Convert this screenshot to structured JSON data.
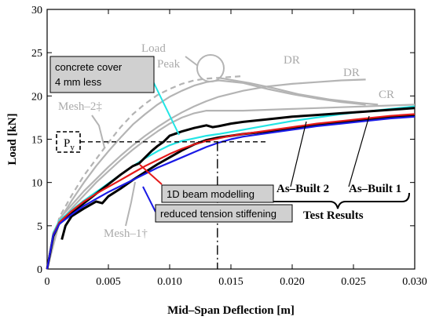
{
  "chart_data": {
    "type": "line",
    "xlabel": "Mid–Span Deflection [m]",
    "ylabel": "Load [kN]",
    "xlim": [
      0,
      0.03
    ],
    "ylim": [
      0,
      30
    ],
    "x_ticks": [
      0,
      0.005,
      0.01,
      0.015,
      0.02,
      0.025,
      0.03
    ],
    "x_tick_labels": [
      "0",
      "0.005",
      "0.010",
      "0.015",
      "0.020",
      "0.025",
      "0.030"
    ],
    "y_ticks": [
      0,
      5,
      10,
      15,
      20,
      25,
      30
    ],
    "y_tick_labels": [
      "0",
      "5",
      "10",
      "15",
      "20",
      "25",
      "30"
    ],
    "grid": false,
    "py_load": 14.7,
    "py_deflection": 0.0139,
    "series": [
      {
        "name": "Mesh–2‡ DR",
        "color": "#b4b4b4",
        "dashed": true,
        "x": [
          0,
          0.001,
          0.002,
          0.003,
          0.004,
          0.005,
          0.006,
          0.007,
          0.008,
          0.009,
          0.01,
          0.011,
          0.012,
          0.013,
          0.014,
          0.015,
          0.016
        ],
        "y": [
          0,
          6.0,
          8.5,
          10.8,
          12.7,
          14.6,
          16.4,
          17.9,
          19.1,
          20.1,
          20.8,
          21.4,
          21.8,
          22.0,
          22.1,
          22.2,
          22.3
        ]
      },
      {
        "name": "Mesh–2‡ CR",
        "color": "#b4b4b4",
        "dashed": false,
        "x": [
          0,
          0.001,
          0.002,
          0.003,
          0.004,
          0.005,
          0.006,
          0.007,
          0.008,
          0.009,
          0.01,
          0.011,
          0.012,
          0.013,
          0.014,
          0.016,
          0.018,
          0.02,
          0.022,
          0.024,
          0.026
        ],
        "y": [
          0,
          5.6,
          7.9,
          10.0,
          11.9,
          13.6,
          15.2,
          16.7,
          17.9,
          19.0,
          19.9,
          20.6,
          21.2,
          21.6,
          21.8,
          21.5,
          20.8,
          20.2,
          19.7,
          19.3,
          19.0
        ]
      },
      {
        "name": "Mesh–1† DR",
        "color": "#b4b4b4",
        "dashed": false,
        "x": [
          0,
          0.001,
          0.002,
          0.003,
          0.004,
          0.005,
          0.006,
          0.007,
          0.008,
          0.009,
          0.01,
          0.011,
          0.012,
          0.013,
          0.014,
          0.016,
          0.018,
          0.02,
          0.022,
          0.024,
          0.026
        ],
        "y": [
          0,
          5.8,
          7.4,
          9.0,
          10.4,
          11.8,
          13.1,
          14.3,
          15.4,
          16.4,
          17.3,
          18.1,
          18.8,
          19.4,
          19.9,
          20.6,
          21.1,
          21.4,
          21.6,
          21.8,
          21.9
        ]
      },
      {
        "name": "Mesh–1† CR",
        "color": "#b4b4b4",
        "dashed": false,
        "x": [
          0,
          0.001,
          0.002,
          0.003,
          0.004,
          0.005,
          0.006,
          0.007,
          0.008,
          0.009,
          0.01,
          0.011,
          0.012,
          0.013,
          0.014,
          0.016,
          0.018,
          0.02,
          0.022,
          0.024,
          0.026,
          0.028,
          0.03
        ],
        "y": [
          0,
          5.4,
          7.0,
          8.5,
          10.0,
          11.3,
          12.6,
          13.8,
          14.9,
          15.9,
          16.8,
          17.5,
          18.0,
          18.3,
          18.3,
          18.3,
          18.4,
          18.5,
          18.6,
          18.7,
          18.8,
          18.9,
          19.0
        ]
      },
      {
        "name": "Load Peak trace",
        "color": "#b4b4b4",
        "dashed": false,
        "x": [
          0.014,
          0.0165,
          0.0185,
          0.0205,
          0.023,
          0.0255,
          0.027
        ],
        "y": [
          22.1,
          21.5,
          20.9,
          20.2,
          19.6,
          19.2,
          19.0
        ]
      },
      {
        "name": "concrete cover 4 mm less",
        "color": "#22e5e5",
        "dashed": false,
        "x": [
          0,
          0.0005,
          0.001,
          0.002,
          0.003,
          0.004,
          0.005,
          0.006,
          0.007,
          0.008,
          0.009,
          0.01,
          0.011,
          0.012,
          0.013,
          0.014,
          0.016,
          0.018,
          0.02,
          0.022,
          0.024,
          0.026,
          0.028,
          0.03
        ],
        "y": [
          0,
          4.2,
          5.6,
          6.8,
          7.9,
          8.9,
          9.9,
          10.9,
          11.9,
          12.8,
          13.6,
          14.3,
          14.8,
          15.1,
          15.4,
          15.6,
          16.1,
          16.6,
          17.1,
          17.5,
          17.9,
          18.2,
          18.5,
          18.8
        ]
      },
      {
        "name": "Test As–Built 2",
        "color": "#000000",
        "dashed": false,
        "x": [
          0,
          0.0005,
          0.001,
          0.0015,
          0.002,
          0.003,
          0.004,
          0.005,
          0.006,
          0.007,
          0.0075,
          0.008,
          0.0085,
          0.009,
          0.0095,
          0.01,
          0.011,
          0.012,
          0.013,
          0.0135,
          0.014,
          0.015,
          0.016,
          0.018,
          0.02,
          0.022,
          0.024,
          0.026,
          0.028,
          0.03
        ],
        "y": [
          0,
          3.8,
          5.3,
          6.0,
          6.5,
          7.6,
          8.7,
          9.8,
          10.9,
          11.9,
          12.2,
          12.9,
          13.6,
          14.2,
          14.7,
          15.4,
          15.9,
          16.3,
          16.6,
          16.4,
          16.5,
          16.8,
          17.0,
          17.3,
          17.6,
          17.8,
          18.0,
          18.2,
          18.4,
          18.6
        ]
      },
      {
        "name": "Test As–Built 1",
        "color": "#000000",
        "dashed": false,
        "x": [
          0.0012,
          0.0015,
          0.002,
          0.003,
          0.004,
          0.0045,
          0.005,
          0.006,
          0.007,
          0.008,
          0.009,
          0.01,
          0.011,
          0.012,
          0.013,
          0.014,
          0.015,
          0.016,
          0.018,
          0.02,
          0.022,
          0.024,
          0.026,
          0.028,
          0.03
        ],
        "y": [
          3.4,
          5.0,
          6.1,
          7.0,
          7.8,
          7.6,
          8.4,
          9.3,
          10.3,
          11.2,
          12.1,
          12.9,
          13.7,
          14.4,
          14.9,
          15.2,
          15.4,
          15.6,
          15.9,
          16.3,
          16.7,
          17.0,
          17.3,
          17.6,
          17.8
        ]
      },
      {
        "name": "1D beam modelling",
        "color": "#e51a1a",
        "dashed": false,
        "x": [
          0,
          0.0005,
          0.001,
          0.002,
          0.003,
          0.004,
          0.005,
          0.006,
          0.007,
          0.008,
          0.009,
          0.01,
          0.011,
          0.012,
          0.013,
          0.014,
          0.015,
          0.016,
          0.018,
          0.02,
          0.022,
          0.024,
          0.026,
          0.028,
          0.03
        ],
        "y": [
          0,
          4.0,
          5.4,
          6.7,
          7.8,
          8.7,
          9.5,
          10.3,
          11.1,
          11.9,
          12.6,
          13.3,
          13.9,
          14.4,
          14.8,
          15.1,
          15.4,
          15.6,
          16.0,
          16.4,
          16.8,
          17.1,
          17.4,
          17.7,
          17.9
        ]
      },
      {
        "name": "reduced tension stiffening",
        "color": "#1a1ae5",
        "dashed": false,
        "x": [
          0,
          0.0005,
          0.001,
          0.002,
          0.003,
          0.004,
          0.005,
          0.006,
          0.007,
          0.008,
          0.009,
          0.01,
          0.011,
          0.012,
          0.013,
          0.014,
          0.015,
          0.016,
          0.018,
          0.02,
          0.022,
          0.024,
          0.026,
          0.028,
          0.03
        ],
        "y": [
          0,
          3.9,
          5.2,
          6.3,
          7.3,
          8.1,
          8.9,
          9.6,
          10.3,
          11.0,
          11.7,
          12.3,
          12.9,
          13.5,
          14.1,
          14.6,
          15.0,
          15.3,
          15.7,
          16.1,
          16.5,
          16.8,
          17.1,
          17.4,
          17.6
        ]
      }
    ],
    "annotations": {
      "load_peak_line1": "Load",
      "load_peak_line2": "Peak",
      "dr_1": "DR",
      "dr_2": "DR",
      "cr": "CR",
      "mesh2": "Mesh–2‡",
      "mesh1": "Mesh–1†",
      "py_base": "P",
      "py_sub": "y",
      "as_built_2": "As–Built 2",
      "as_built_1": "As–Built 1",
      "test_results": "Test Results",
      "concrete_cover_line1": "concrete cover",
      "concrete_cover_line2": "4 mm less",
      "beam_modelling": "1D beam modelling",
      "tension_stiffening": "reduced tension stiffening"
    }
  }
}
